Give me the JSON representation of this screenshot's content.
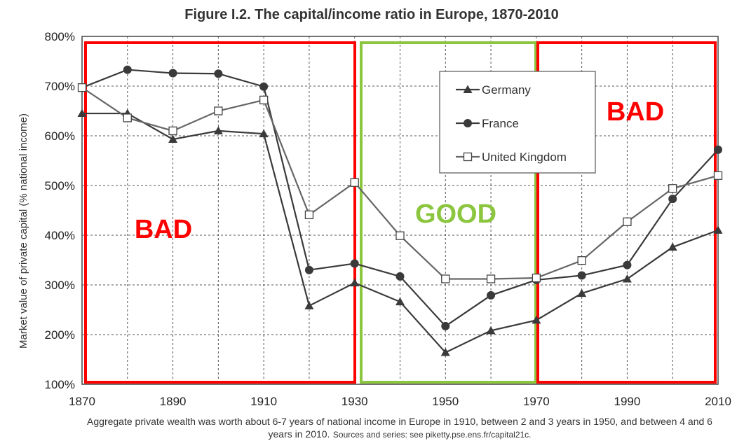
{
  "chart_data": {
    "type": "line",
    "title": "Figure I.2. The capital/income ratio in Europe, 1870-2010",
    "ylabel": "Market value of private capital (% national income)",
    "xlabel": "",
    "xlim": [
      1870,
      2010
    ],
    "ylim": [
      100,
      800
    ],
    "x_ticks": [
      "1870",
      "1890",
      "1910",
      "1930",
      "1950",
      "1970",
      "1990",
      "2010"
    ],
    "y_ticks": [
      "100%",
      "200%",
      "300%",
      "400%",
      "500%",
      "600%",
      "700%",
      "800%"
    ],
    "grid": true,
    "legend_position": "top-right",
    "series": [
      {
        "name": "Germany",
        "marker": "triangle",
        "x": [
          1870,
          1880,
          1890,
          1900,
          1910,
          1920,
          1930,
          1940,
          1950,
          1960,
          1970,
          1980,
          1990,
          2000,
          2010
        ],
        "values": [
          645,
          645,
          593,
          610,
          604,
          258,
          304,
          266,
          164,
          208,
          229,
          283,
          312,
          376,
          410
        ]
      },
      {
        "name": "France",
        "marker": "circle",
        "x": [
          1870,
          1880,
          1890,
          1900,
          1910,
          1920,
          1930,
          1940,
          1950,
          1960,
          1970,
          1980,
          1990,
          2000,
          2010
        ],
        "values": [
          697,
          733,
          726,
          725,
          699,
          330,
          343,
          317,
          217,
          279,
          310,
          319,
          340,
          473,
          572
        ]
      },
      {
        "name": "United Kingdom",
        "marker": "square",
        "x": [
          1870,
          1880,
          1890,
          1900,
          1910,
          1920,
          1930,
          1940,
          1950,
          1960,
          1970,
          1980,
          1990,
          2000,
          2010
        ],
        "values": [
          697,
          636,
          610,
          650,
          672,
          441,
          506,
          399,
          312,
          312,
          314,
          349,
          427,
          494,
          520
        ]
      }
    ],
    "annotations": [
      {
        "label": "BAD",
        "x_range": [
          1870,
          1930
        ],
        "color": "#ff0000"
      },
      {
        "label": "GOOD",
        "x_range": [
          1930,
          1970
        ],
        "color": "#8cc63f"
      },
      {
        "label": "BAD",
        "x_range": [
          1970,
          2010
        ],
        "color": "#ff0000"
      }
    ]
  },
  "caption": {
    "main": "Aggregate private wealth was worth about 6-7 years of national income in Europe in 1910, between 2 and 3 years in 1950, and between 4 and 6 years in 2010.",
    "source": "Sources and series: see piketty.pse.ens.fr/capital21c."
  }
}
